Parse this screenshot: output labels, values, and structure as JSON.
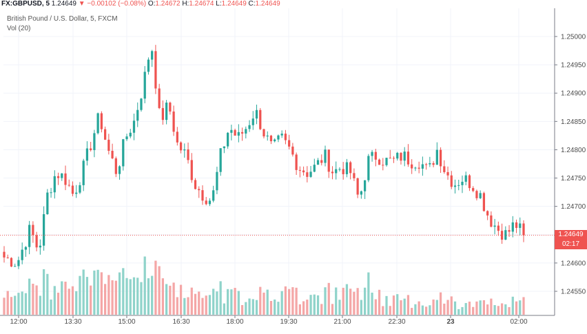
{
  "header": {
    "symbol": "FX:GBPUSD, 5",
    "last": "1.24649",
    "change_arrow": "▼",
    "change": "−0.00102 (−0.08%)",
    "o_label": "O:",
    "o_value": "1.24672",
    "h_label": "H:",
    "h_value": "1.24674",
    "l_label": "L:",
    "l_value": "1.24649",
    "c_label": "C:",
    "c_value": "1.24649"
  },
  "legend": {
    "instrument": "British Pound / U.S. Dollar, 5, FXCM",
    "volume": "Vol (20)"
  },
  "price_tag": {
    "price": "1.24649",
    "countdown": "02:17"
  },
  "colors": {
    "up": "#26a69a",
    "down": "#ef5350",
    "vol_up": "#8fd3ca",
    "vol_down": "#f4a6a6"
  },
  "chart_data": {
    "type": "candlestick",
    "y_ticks": [
      "1.25000",
      "1.24950",
      "1.24900",
      "1.24850",
      "1.24800",
      "1.24750",
      "1.24700",
      "1.24650",
      "1.24600",
      "1.24550"
    ],
    "y_range": [
      1.24525,
      1.25025
    ],
    "x_ticks": [
      "12:00",
      "13:30",
      "15:00",
      "16:30",
      "18:00",
      "19:30",
      "21:00",
      "22:30",
      "23",
      "02:00"
    ],
    "bar_interval_minutes": 5,
    "last_price": 1.24649,
    "close_path": [
      [
        0,
        1.2461
      ],
      [
        3,
        1.246
      ],
      [
        6,
        1.2466
      ],
      [
        8,
        1.2462
      ],
      [
        10,
        1.2472
      ],
      [
        12,
        1.2476
      ],
      [
        14,
        1.2475
      ],
      [
        16,
        1.2472
      ],
      [
        18,
        1.2476
      ],
      [
        20,
        1.2481
      ],
      [
        22,
        1.2486
      ],
      [
        24,
        1.248
      ],
      [
        26,
        1.2476
      ],
      [
        28,
        1.2482
      ],
      [
        30,
        1.2485
      ],
      [
        32,
        1.2491
      ],
      [
        34,
        1.2499
      ],
      [
        36,
        1.2485
      ],
      [
        38,
        1.2488
      ],
      [
        40,
        1.2481
      ],
      [
        42,
        1.2479
      ],
      [
        44,
        1.2474
      ],
      [
        46,
        1.2472
      ],
      [
        48,
        1.2471
      ],
      [
        50,
        1.2479
      ],
      [
        52,
        1.2484
      ],
      [
        54,
        1.2482
      ],
      [
        56,
        1.2484
      ],
      [
        58,
        1.2487
      ],
      [
        60,
        1.2483
      ],
      [
        62,
        1.248
      ],
      [
        64,
        1.2482
      ],
      [
        66,
        1.248
      ],
      [
        68,
        1.2477
      ],
      [
        70,
        1.2476
      ],
      [
        72,
        1.2477
      ],
      [
        74,
        1.2479
      ],
      [
        76,
        1.2476
      ],
      [
        78,
        1.2477
      ],
      [
        80,
        1.2476
      ],
      [
        82,
        1.2471
      ],
      [
        84,
        1.2478
      ],
      [
        86,
        1.2479
      ],
      [
        88,
        1.2478
      ],
      [
        90,
        1.2478
      ],
      [
        92,
        1.2479
      ],
      [
        94,
        1.2478
      ],
      [
        96,
        1.2478
      ],
      [
        98,
        1.2476
      ],
      [
        100,
        1.248
      ],
      [
        102,
        1.2476
      ],
      [
        104,
        1.2474
      ],
      [
        106,
        1.2475
      ],
      [
        108,
        1.2474
      ],
      [
        110,
        1.2472
      ],
      [
        112,
        1.2468
      ],
      [
        114,
        1.2466
      ],
      [
        116,
        1.2465
      ],
      [
        118,
        1.2467
      ],
      [
        120,
        1.24649
      ]
    ]
  }
}
